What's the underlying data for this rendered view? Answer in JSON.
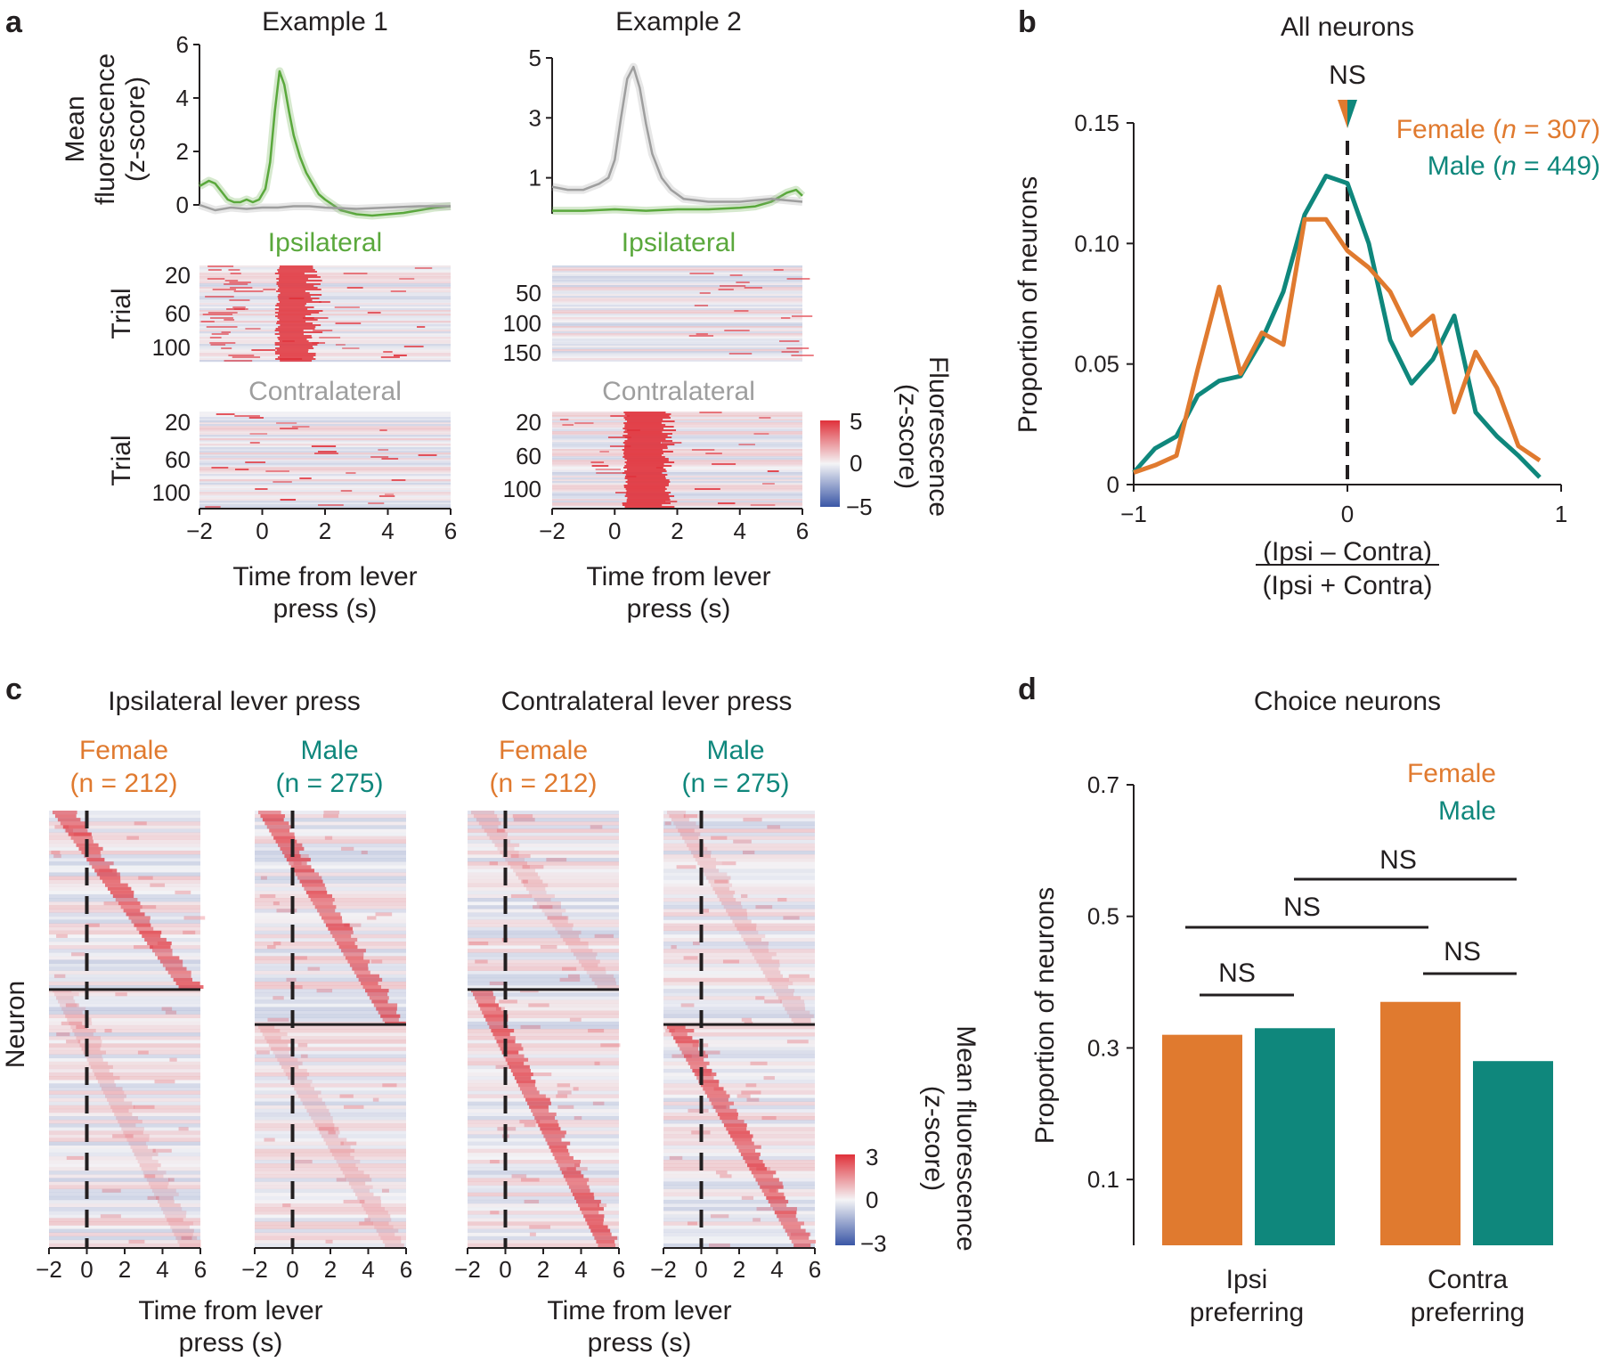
{
  "colors": {
    "female": "#e07a2f",
    "male": "#0f877c",
    "ipsi": "#5aa83c",
    "contra": "#9e9e9e",
    "hot": "#e0313a",
    "cold": "#3a56a6",
    "ink": "#231f20"
  },
  "panel_labels": {
    "a": "a",
    "b": "b",
    "c": "c",
    "d": "d"
  },
  "panel_a": {
    "example1_title": "Example 1",
    "example2_title": "Example 2",
    "ylabel_mean": [
      "Mean",
      "fluorescence",
      "(z-score)"
    ],
    "ipsi_label": "Ipsilateral",
    "contra_label": "Contralateral",
    "trial_label": "Trial",
    "colorbar_label": [
      "Fluorescence",
      "(z-score)"
    ],
    "colorbar_ticks": [
      "5",
      "0",
      "−5"
    ],
    "xlabel": [
      "Time from lever",
      "press (s)"
    ],
    "xticks": [
      "−2",
      "0",
      "2",
      "4",
      "6"
    ]
  },
  "panel_b": {
    "title": "All neurons",
    "ns_label": "NS",
    "xlabel_num": "(Ipsi – Contra)",
    "xlabel_den": "(Ipsi + Contra)",
    "ylabel": "Proportion of neurons",
    "legend_female_prefix": "Female (",
    "legend_female_n": "n",
    "legend_female_suffix": " = 307)",
    "legend_male_prefix": "Male (",
    "legend_male_n": "n",
    "legend_male_suffix": " = 449)",
    "yticks": [
      "0",
      "0.05",
      "0.10",
      "0.15"
    ],
    "xticks": [
      "−1",
      "0",
      "1"
    ]
  },
  "panel_c": {
    "ipsi_title": "Ipsilateral lever press",
    "contra_title": "Contralateral lever press",
    "female_label": "Female",
    "female_n": "(n = 212)",
    "male_label": "Male",
    "male_n": "(n = 275)",
    "ylabel": "Neuron",
    "colorbar_label": [
      "Mean fluorescence",
      "(z-score)"
    ],
    "colorbar_ticks": [
      "3",
      "0",
      "−3"
    ],
    "xlabel": [
      "Time from lever",
      "press (s)"
    ],
    "xticks": [
      "−2",
      "0",
      "2",
      "4",
      "6"
    ]
  },
  "panel_d": {
    "title": "Choice neurons",
    "legend_female": "Female",
    "legend_male": "Male",
    "ylabel": "Proportion of neurons",
    "yticks": [
      "0.1",
      "0.3",
      "0.5",
      "0.7"
    ],
    "ns": [
      "NS",
      "NS",
      "NS",
      "NS"
    ],
    "cat_ipsi": [
      "Ipsi",
      "preferring"
    ],
    "cat_contra": [
      "Contra",
      "preferring"
    ]
  },
  "chart_data": [
    {
      "id": "a-example1-mean",
      "type": "line",
      "title": "Example 1",
      "xlabel": "Time from lever press (s)",
      "ylabel": "Mean fluorescence (z-score)",
      "xlim": [
        -2,
        6
      ],
      "ylim": [
        0,
        6
      ],
      "yticks": [
        0,
        2,
        4,
        6
      ],
      "series": [
        {
          "name": "Ipsilateral",
          "x": [
            -2,
            -1.7,
            -1.5,
            -1.3,
            -1.1,
            -0.9,
            -0.7,
            -0.5,
            -0.3,
            -0.1,
            0.1,
            0.25,
            0.4,
            0.55,
            0.7,
            0.85,
            1,
            1.2,
            1.4,
            1.6,
            1.8,
            2,
            2.5,
            3,
            3.5,
            4,
            4.5,
            5,
            5.5,
            6
          ],
          "y": [
            0.7,
            0.9,
            0.8,
            0.5,
            0.2,
            0.1,
            0.1,
            0.2,
            0.1,
            0.2,
            0.6,
            1.6,
            3.5,
            5.0,
            4.5,
            3.5,
            2.6,
            1.8,
            1.2,
            0.8,
            0.4,
            0.2,
            -0.2,
            -0.35,
            -0.4,
            -0.35,
            -0.3,
            -0.2,
            -0.1,
            -0.05
          ]
        },
        {
          "name": "Contralateral",
          "x": [
            -2,
            -1.5,
            -1,
            -0.5,
            0,
            0.5,
            1,
            1.5,
            2,
            3,
            4,
            5,
            6
          ],
          "y": [
            0.0,
            -0.2,
            -0.1,
            -0.15,
            -0.1,
            -0.1,
            -0.05,
            -0.05,
            -0.1,
            -0.15,
            -0.1,
            -0.05,
            -0.05
          ]
        }
      ]
    },
    {
      "id": "a-example2-mean",
      "type": "line",
      "title": "Example 2",
      "xlabel": "Time from lever press (s)",
      "ylabel": "Mean fluorescence (z-score)",
      "xlim": [
        -2,
        6
      ],
      "ylim": [
        -0.2,
        5
      ],
      "yticks": [
        1,
        3,
        5
      ],
      "series": [
        {
          "name": "Ipsilateral",
          "x": [
            -2,
            -1,
            0,
            1,
            2,
            3,
            4,
            4.5,
            5,
            5.5,
            5.8,
            6
          ],
          "y": [
            -0.1,
            -0.1,
            -0.05,
            -0.1,
            -0.05,
            -0.05,
            0.0,
            0.05,
            0.2,
            0.5,
            0.6,
            0.4
          ]
        },
        {
          "name": "Contralateral",
          "x": [
            -2,
            -1.5,
            -1,
            -0.5,
            -0.2,
            0,
            0.2,
            0.4,
            0.6,
            0.8,
            1,
            1.2,
            1.5,
            1.8,
            2.2,
            3,
            4,
            5,
            6
          ],
          "y": [
            0.7,
            0.6,
            0.6,
            0.8,
            1.0,
            1.6,
            3.0,
            4.3,
            4.7,
            4.0,
            2.8,
            1.8,
            1.0,
            0.6,
            0.3,
            0.2,
            0.2,
            0.3,
            0.2
          ]
        }
      ]
    },
    {
      "id": "b-all-neurons",
      "type": "line",
      "title": "All neurons",
      "xlabel": "(Ipsi – Contra)/(Ipsi + Contra)",
      "ylabel": "Proportion of neurons",
      "xlim": [
        -1,
        1
      ],
      "ylim": [
        0,
        0.15
      ],
      "series": [
        {
          "name": "Female (n = 307)",
          "x": [
            -1,
            -0.9,
            -0.8,
            -0.7,
            -0.6,
            -0.5,
            -0.4,
            -0.3,
            -0.2,
            -0.1,
            0,
            0.1,
            0.2,
            0.3,
            0.4,
            0.5,
            0.6,
            0.7,
            0.8,
            0.9
          ],
          "y": [
            0.005,
            0.008,
            0.012,
            0.048,
            0.082,
            0.046,
            0.063,
            0.058,
            0.11,
            0.11,
            0.097,
            0.09,
            0.08,
            0.062,
            0.07,
            0.03,
            0.055,
            0.04,
            0.016,
            0.01
          ]
        },
        {
          "name": "Male (n = 449)",
          "x": [
            -1,
            -0.9,
            -0.8,
            -0.7,
            -0.6,
            -0.5,
            -0.4,
            -0.3,
            -0.2,
            -0.1,
            0,
            0.1,
            0.2,
            0.3,
            0.4,
            0.5,
            0.6,
            0.7,
            0.8,
            0.9
          ],
          "y": [
            0.005,
            0.015,
            0.02,
            0.037,
            0.043,
            0.045,
            0.06,
            0.08,
            0.112,
            0.128,
            0.125,
            0.1,
            0.06,
            0.042,
            0.052,
            0.07,
            0.03,
            0.02,
            0.012,
            0.003
          ]
        }
      ]
    },
    {
      "id": "d-choice-neurons",
      "type": "bar",
      "title": "Choice neurons",
      "ylabel": "Proportion of neurons",
      "categories": [
        "Ipsi preferring",
        "Contra preferring"
      ],
      "ylim": [
        0,
        0.7
      ],
      "series": [
        {
          "name": "Female",
          "values": [
            0.32,
            0.37
          ]
        },
        {
          "name": "Male",
          "values": [
            0.33,
            0.28
          ]
        }
      ]
    }
  ]
}
